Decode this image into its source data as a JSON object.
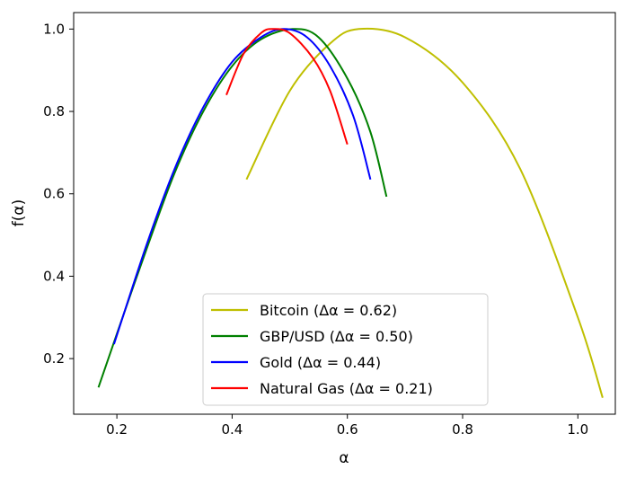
{
  "chart_data": {
    "type": "line",
    "xlabel": "α",
    "ylabel": "f(α)",
    "xlim": [
      0.125,
      1.065
    ],
    "ylim": [
      0.065,
      1.04
    ],
    "xticks": [
      {
        "value": 0.2,
        "label": "0.2"
      },
      {
        "value": 0.4,
        "label": "0.4"
      },
      {
        "value": 0.6,
        "label": "0.6"
      },
      {
        "value": 0.8,
        "label": "0.8"
      },
      {
        "value": 1.0,
        "label": "1.0"
      }
    ],
    "yticks": [
      {
        "value": 0.2,
        "label": "0.2"
      },
      {
        "value": 0.4,
        "label": "0.4"
      },
      {
        "value": 0.6,
        "label": "0.6"
      },
      {
        "value": 0.8,
        "label": "0.8"
      },
      {
        "value": 1.0,
        "label": "1.0"
      }
    ],
    "grid": false,
    "legend_position": "lower-center",
    "series": [
      {
        "name": "Bitcoin (Δα = 0.62)",
        "color": "#bfbf00",
        "points": [
          [
            0.425,
            0.635
          ],
          [
            0.5,
            0.85
          ],
          [
            0.57,
            0.965
          ],
          [
            0.62,
            1.0
          ],
          [
            0.7,
            0.98
          ],
          [
            0.8,
            0.87
          ],
          [
            0.9,
            0.66
          ],
          [
            1.0,
            0.3
          ],
          [
            1.043,
            0.105
          ]
        ]
      },
      {
        "name": "GBP/USD (Δα = 0.50)",
        "color": "#008000",
        "points": [
          [
            0.168,
            0.13
          ],
          [
            0.2,
            0.26
          ],
          [
            0.25,
            0.46
          ],
          [
            0.3,
            0.65
          ],
          [
            0.35,
            0.8
          ],
          [
            0.4,
            0.91
          ],
          [
            0.45,
            0.975
          ],
          [
            0.505,
            1.0
          ],
          [
            0.55,
            0.98
          ],
          [
            0.6,
            0.88
          ],
          [
            0.64,
            0.75
          ],
          [
            0.668,
            0.593
          ]
        ]
      },
      {
        "name": "Gold (Δα = 0.44)",
        "color": "#0000ff",
        "points": [
          [
            0.195,
            0.235
          ],
          [
            0.25,
            0.47
          ],
          [
            0.3,
            0.66
          ],
          [
            0.35,
            0.81
          ],
          [
            0.4,
            0.92
          ],
          [
            0.45,
            0.98
          ],
          [
            0.49,
            1.0
          ],
          [
            0.53,
            0.98
          ],
          [
            0.57,
            0.91
          ],
          [
            0.61,
            0.79
          ],
          [
            0.64,
            0.635
          ]
        ]
      },
      {
        "name": "Natural Gas (Δα = 0.21)",
        "color": "#ff0000",
        "points": [
          [
            0.39,
            0.84
          ],
          [
            0.42,
            0.94
          ],
          [
            0.45,
            0.99
          ],
          [
            0.47,
            1.0
          ],
          [
            0.5,
            0.99
          ],
          [
            0.54,
            0.93
          ],
          [
            0.57,
            0.85
          ],
          [
            0.6,
            0.72
          ]
        ]
      }
    ]
  }
}
